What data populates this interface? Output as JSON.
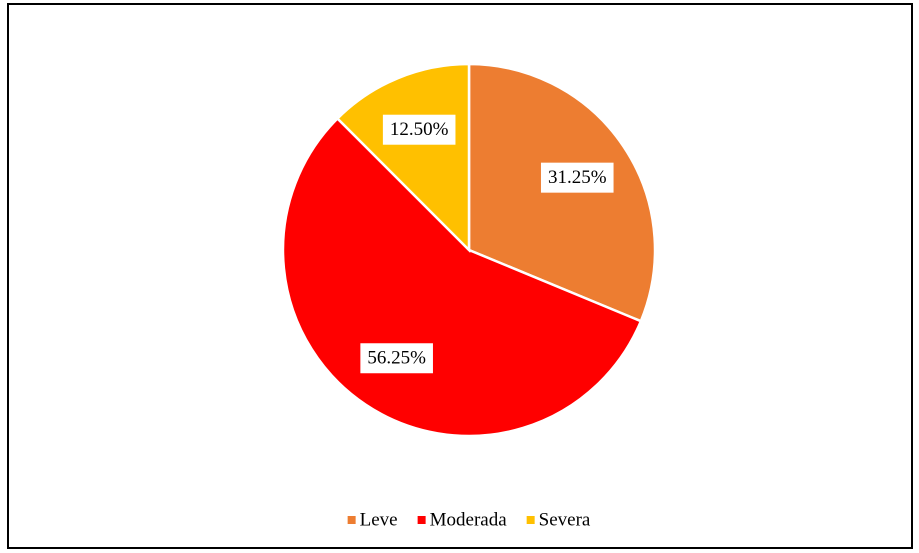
{
  "chart_data": {
    "type": "pie",
    "categories": [
      "Leve",
      "Moderada",
      "Severa"
    ],
    "values": [
      31.25,
      56.25,
      12.5
    ],
    "value_labels": [
      "31.25%",
      "56.25%",
      "12.50%"
    ],
    "colors": [
      "#ED7D31",
      "#FF0000",
      "#FFC000"
    ],
    "legend": "bottom"
  }
}
